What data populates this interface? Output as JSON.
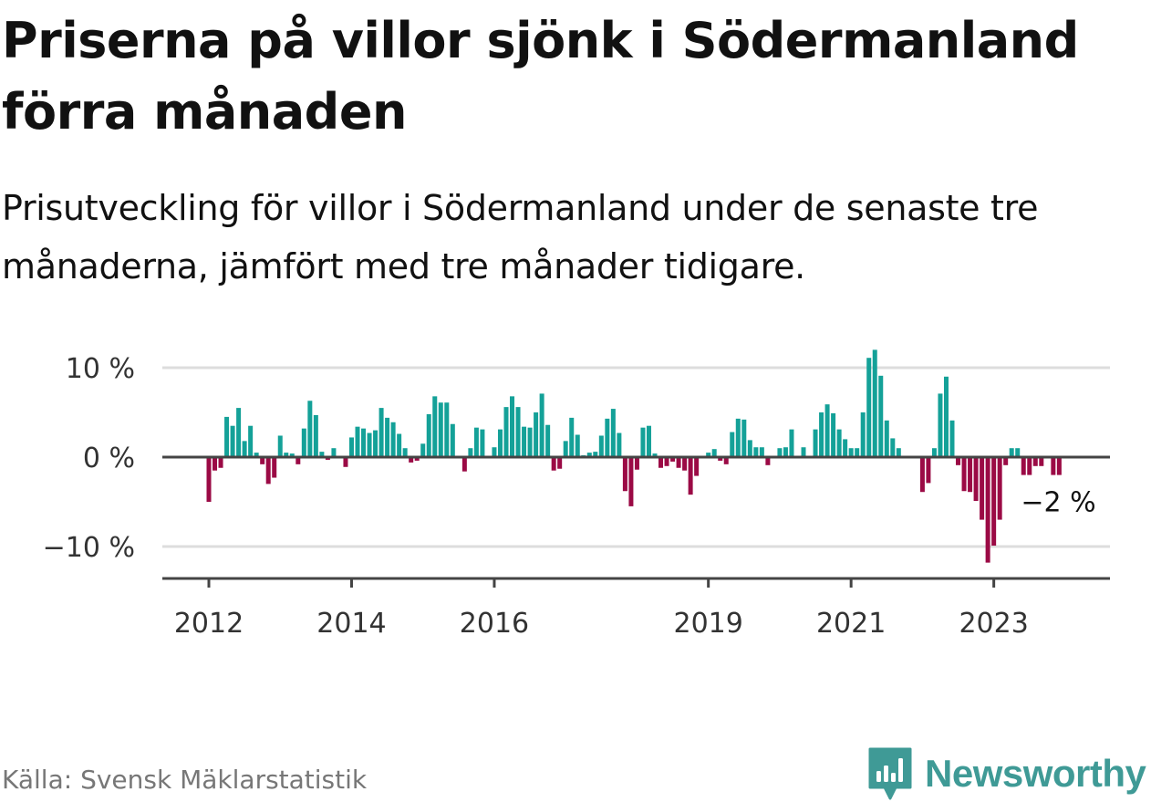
{
  "title": "Priserna på villor sjönk i Södermanland förra månaden",
  "subtitle": "Prisutveckling för villor i Södermanland under de senaste tre månaderna, jämfört med tre månader tidigare.",
  "source": "Källa: Svensk Mäklarstatistik",
  "brand": {
    "name": "Newsworthy",
    "icon": "newsworthy-logo-icon",
    "color": "#3f9a96"
  },
  "colors": {
    "positive": "#14a198",
    "negative": "#9b0a45",
    "axis": "#444444",
    "grid": "#dddddd"
  },
  "chart_data": {
    "type": "bar",
    "ylim": [
      -13.5,
      10.5
    ],
    "yticks": [
      {
        "value": 10,
        "label": "10 %"
      },
      {
        "value": 0,
        "label": "0 %"
      },
      {
        "value": -10,
        "label": "−10 %"
      }
    ],
    "xticks": [
      {
        "month": "2012-01",
        "label": "2012"
      },
      {
        "month": "2014-01",
        "label": "2014"
      },
      {
        "month": "2016-01",
        "label": "2016"
      },
      {
        "month": "2019-01",
        "label": "2019"
      },
      {
        "month": "2021-01",
        "label": "2021"
      },
      {
        "month": "2023-01",
        "label": "2023"
      }
    ],
    "grid": true,
    "annotation": {
      "month": "2023-12",
      "value": -2,
      "label": "−2 %"
    },
    "series": [
      {
        "months": [
          "2012-01",
          "2012-02",
          "2012-03",
          "2012-04",
          "2012-05",
          "2012-06",
          "2012-07",
          "2012-08",
          "2012-09",
          "2012-10",
          "2012-11",
          "2012-12",
          "2013-01",
          "2013-02",
          "2013-03",
          "2013-04",
          "2013-05",
          "2013-06",
          "2013-07",
          "2013-08",
          "2013-09",
          "2013-10",
          "2013-11",
          "2013-12",
          "2014-01",
          "2014-02",
          "2014-03",
          "2014-04",
          "2014-05",
          "2014-06",
          "2014-07",
          "2014-08",
          "2014-09",
          "2014-10",
          "2014-11",
          "2014-12",
          "2015-01",
          "2015-02",
          "2015-03",
          "2015-04",
          "2015-05",
          "2015-06",
          "2015-07",
          "2015-08",
          "2015-09",
          "2015-10",
          "2015-11",
          "2015-12",
          "2016-01",
          "2016-02",
          "2016-03",
          "2016-04",
          "2016-05",
          "2016-06",
          "2016-07",
          "2016-08",
          "2016-09",
          "2016-10",
          "2016-11",
          "2016-12",
          "2017-01",
          "2017-02",
          "2017-03",
          "2017-04",
          "2017-05",
          "2017-06",
          "2017-07",
          "2017-08",
          "2017-09",
          "2017-10",
          "2017-11",
          "2017-12",
          "2018-01",
          "2018-02",
          "2018-03",
          "2018-04",
          "2018-05",
          "2018-06",
          "2018-07",
          "2018-08",
          "2018-09",
          "2018-10",
          "2018-11",
          "2018-12",
          "2019-01",
          "2019-02",
          "2019-03",
          "2019-04",
          "2019-05",
          "2019-06",
          "2019-07",
          "2019-08",
          "2019-09",
          "2019-10",
          "2019-11",
          "2019-12",
          "2020-01",
          "2020-02",
          "2020-03",
          "2020-04",
          "2020-05",
          "2020-06",
          "2020-07",
          "2020-08",
          "2020-09",
          "2020-10",
          "2020-11",
          "2020-12",
          "2021-01",
          "2021-02",
          "2021-03",
          "2021-04",
          "2021-05",
          "2021-06",
          "2021-07",
          "2021-08",
          "2021-09",
          "2021-10",
          "2021-11",
          "2021-12",
          "2022-01",
          "2022-02",
          "2022-03",
          "2022-04",
          "2022-05",
          "2022-06",
          "2022-07",
          "2022-08",
          "2022-09",
          "2022-10",
          "2022-11",
          "2022-12",
          "2023-01",
          "2023-02",
          "2023-03",
          "2023-04",
          "2023-05",
          "2023-06",
          "2023-07",
          "2023-08",
          "2023-09",
          "2023-10",
          "2023-11",
          "2023-12"
        ],
        "values": [
          -5,
          -1.5,
          -1.2,
          4.5,
          3.5,
          5.5,
          1.8,
          3.5,
          0.5,
          -0.8,
          -3,
          -2.3,
          2.4,
          0.5,
          0.4,
          -0.8,
          3.2,
          6.3,
          4.7,
          0.6,
          -0.3,
          1,
          0.1,
          -1.1,
          2.2,
          3.4,
          3.2,
          2.7,
          3,
          5.5,
          4.4,
          3.9,
          2.6,
          1,
          -0.6,
          -0.4,
          1.5,
          4.8,
          6.8,
          6.1,
          6.1,
          3.7,
          0.1,
          -1.6,
          1,
          3.3,
          3.1,
          0.1,
          1.1,
          3.1,
          5.6,
          6.8,
          5.6,
          3.4,
          3.3,
          5,
          7.1,
          3.6,
          -1.5,
          -1.3,
          1.8,
          4.4,
          2.5,
          0.2,
          0.5,
          0.6,
          2.4,
          4.3,
          5.4,
          2.7,
          -3.8,
          -5.5,
          -1.4,
          3.3,
          3.5,
          0.4,
          -1.2,
          -1,
          -0.5,
          -1.2,
          -1.5,
          -4.2,
          -2.1,
          0.1,
          0.5,
          0.9,
          -0.4,
          -0.8,
          2.8,
          4.3,
          4.2,
          1.9,
          1.1,
          1.1,
          -0.9,
          0.1,
          1,
          1.1,
          3.1,
          0.1,
          1.1,
          0.1,
          3.1,
          5,
          5.9,
          4.9,
          3.1,
          2,
          1,
          1,
          5,
          11.1,
          12,
          9.1,
          4.1,
          2.1,
          1,
          0.1,
          0.1,
          0.1,
          -3.9,
          -2.9,
          1,
          7.1,
          9,
          4.1,
          -0.9,
          -3.8,
          -3.9,
          -4.9,
          -7,
          -11.8,
          -9.9,
          -7,
          -0.9,
          1,
          1,
          -2,
          -2,
          -1,
          -1,
          0.1,
          -2,
          -2
        ]
      }
    ]
  }
}
